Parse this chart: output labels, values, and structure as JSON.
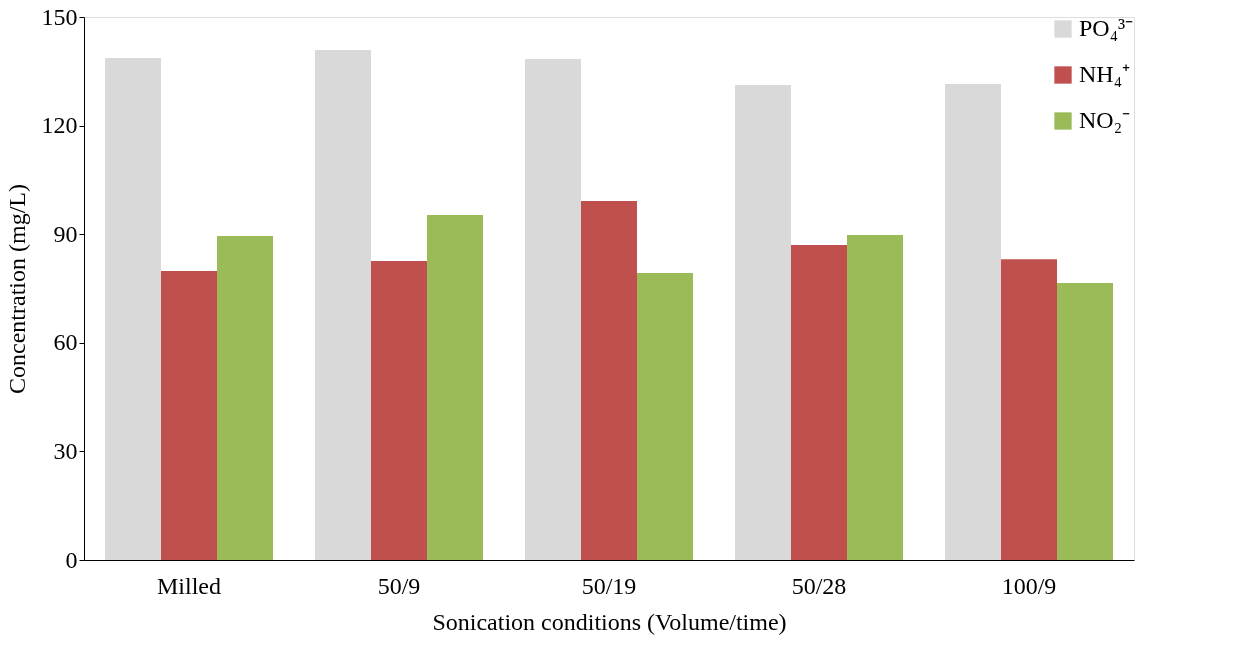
{
  "chart_data": {
    "type": "bar",
    "xlabel": "Sonication conditions (Volume/time)",
    "ylabel": "Concentration (mg/L)",
    "categories": [
      "Milled",
      "50/9",
      "50/19",
      "50/28",
      "100/9"
    ],
    "series": [
      {
        "name": "PO₄³⁻",
        "color": "#d9d9d9",
        "values": [
          138.7,
          140.9,
          138.4,
          131.2,
          131.5
        ]
      },
      {
        "name": "NH₄⁺",
        "color": "#c0504d",
        "values": [
          79.8,
          82.6,
          99.2,
          87.0,
          83.1
        ]
      },
      {
        "name": "NO₂⁻",
        "color": "#9bbb59",
        "values": [
          89.5,
          95.3,
          79.3,
          89.8,
          76.5
        ]
      }
    ],
    "ylim": [
      0,
      150
    ],
    "yticks": [
      0,
      30,
      60,
      90,
      120,
      150
    ],
    "grid": false,
    "legend": "top right"
  }
}
